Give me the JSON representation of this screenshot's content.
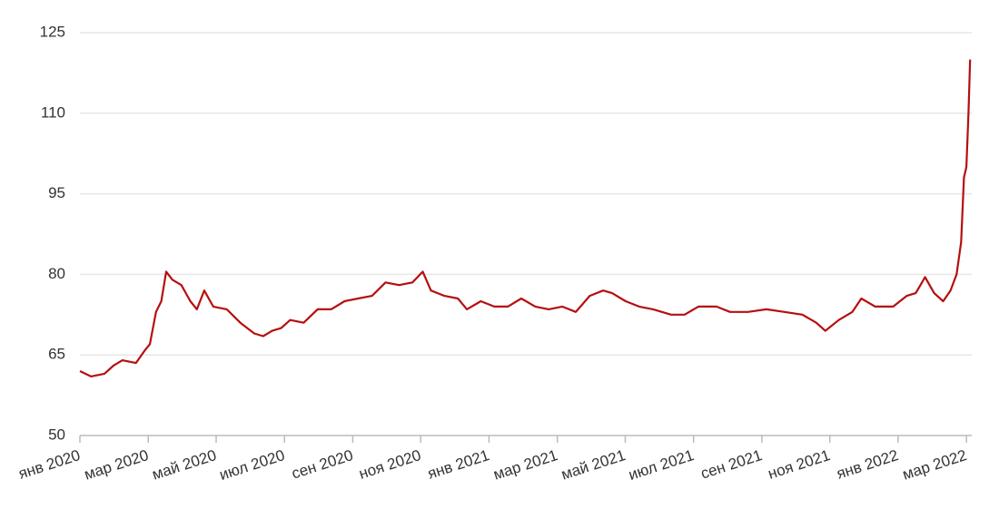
{
  "chart_data": {
    "type": "line",
    "x": [
      2020.0,
      2020.027,
      2020.06,
      2020.082,
      2020.104,
      2020.137,
      2020.16,
      2020.171,
      2020.186,
      2020.199,
      2020.211,
      2020.226,
      2020.248,
      2020.27,
      2020.286,
      2020.304,
      2020.326,
      2020.359,
      2020.392,
      2020.426,
      2020.448,
      2020.47,
      2020.492,
      2020.514,
      2020.547,
      2020.581,
      2020.614,
      2020.647,
      2020.68,
      2020.714,
      2020.747,
      2020.78,
      2020.813,
      2020.838,
      2020.858,
      2020.891,
      2020.924,
      2020.946,
      2020.98,
      2021.013,
      2021.046,
      2021.079,
      2021.113,
      2021.146,
      2021.179,
      2021.212,
      2021.246,
      2021.279,
      2021.301,
      2021.334,
      2021.367,
      2021.401,
      2021.445,
      2021.478,
      2021.512,
      2021.556,
      2021.589,
      2021.633,
      2021.678,
      2021.722,
      2021.766,
      2021.8,
      2021.822,
      2021.855,
      2021.888,
      2021.91,
      2021.944,
      2021.988,
      2022.021,
      2022.043,
      2022.066,
      2022.088,
      2022.11,
      2022.128,
      2022.143,
      2022.154,
      2022.161,
      2022.167,
      2022.172,
      2022.176
    ],
    "series": [
      {
        "color": "#b50f0f",
        "values": [
          62,
          61,
          61.5,
          63,
          64,
          63.5,
          66,
          67,
          73,
          75,
          80.5,
          79,
          78,
          75,
          73.5,
          77,
          74,
          73.5,
          71,
          69,
          68.5,
          69.5,
          70,
          71.5,
          71,
          73.5,
          73.5,
          75,
          75.5,
          76,
          78.5,
          78,
          78.5,
          80.5,
          77,
          76,
          75.5,
          73.5,
          75,
          74,
          74,
          75.5,
          74,
          73.5,
          74,
          73,
          76,
          77,
          76.5,
          75,
          74,
          73.5,
          72.5,
          72.5,
          74,
          74,
          73,
          73,
          73.5,
          73,
          72.5,
          71,
          69.5,
          71.5,
          73,
          75.5,
          74,
          74,
          76,
          76.5,
          79.5,
          76.5,
          75,
          77,
          80,
          86,
          98,
          100,
          110,
          120
        ]
      }
    ],
    "xlim": [
      2020,
      2022.18
    ],
    "ylim": [
      50,
      125
    ],
    "yticks": [
      50,
      65,
      80,
      95,
      110,
      125
    ],
    "grid": true,
    "xticks": [
      {
        "value": 2020,
        "label": "янв 2020"
      },
      {
        "value": 2020.167,
        "label": "мар 2020"
      },
      {
        "value": 2020.333,
        "label": "май 2020"
      },
      {
        "value": 2020.5,
        "label": "июл 2020"
      },
      {
        "value": 2020.667,
        "label": "сен 2020"
      },
      {
        "value": 2020.833,
        "label": "ноя 2020"
      },
      {
        "value": 2021,
        "label": "янв 2021"
      },
      {
        "value": 2021.167,
        "label": "мар 2021"
      },
      {
        "value": 2021.333,
        "label": "май 2021"
      },
      {
        "value": 2021.5,
        "label": "июл 2021"
      },
      {
        "value": 2021.667,
        "label": "сен 2021"
      },
      {
        "value": 2021.833,
        "label": "ноя 2021"
      },
      {
        "value": 2022,
        "label": "янв 2022"
      },
      {
        "value": 2022.167,
        "label": "мар 2022"
      }
    ]
  }
}
